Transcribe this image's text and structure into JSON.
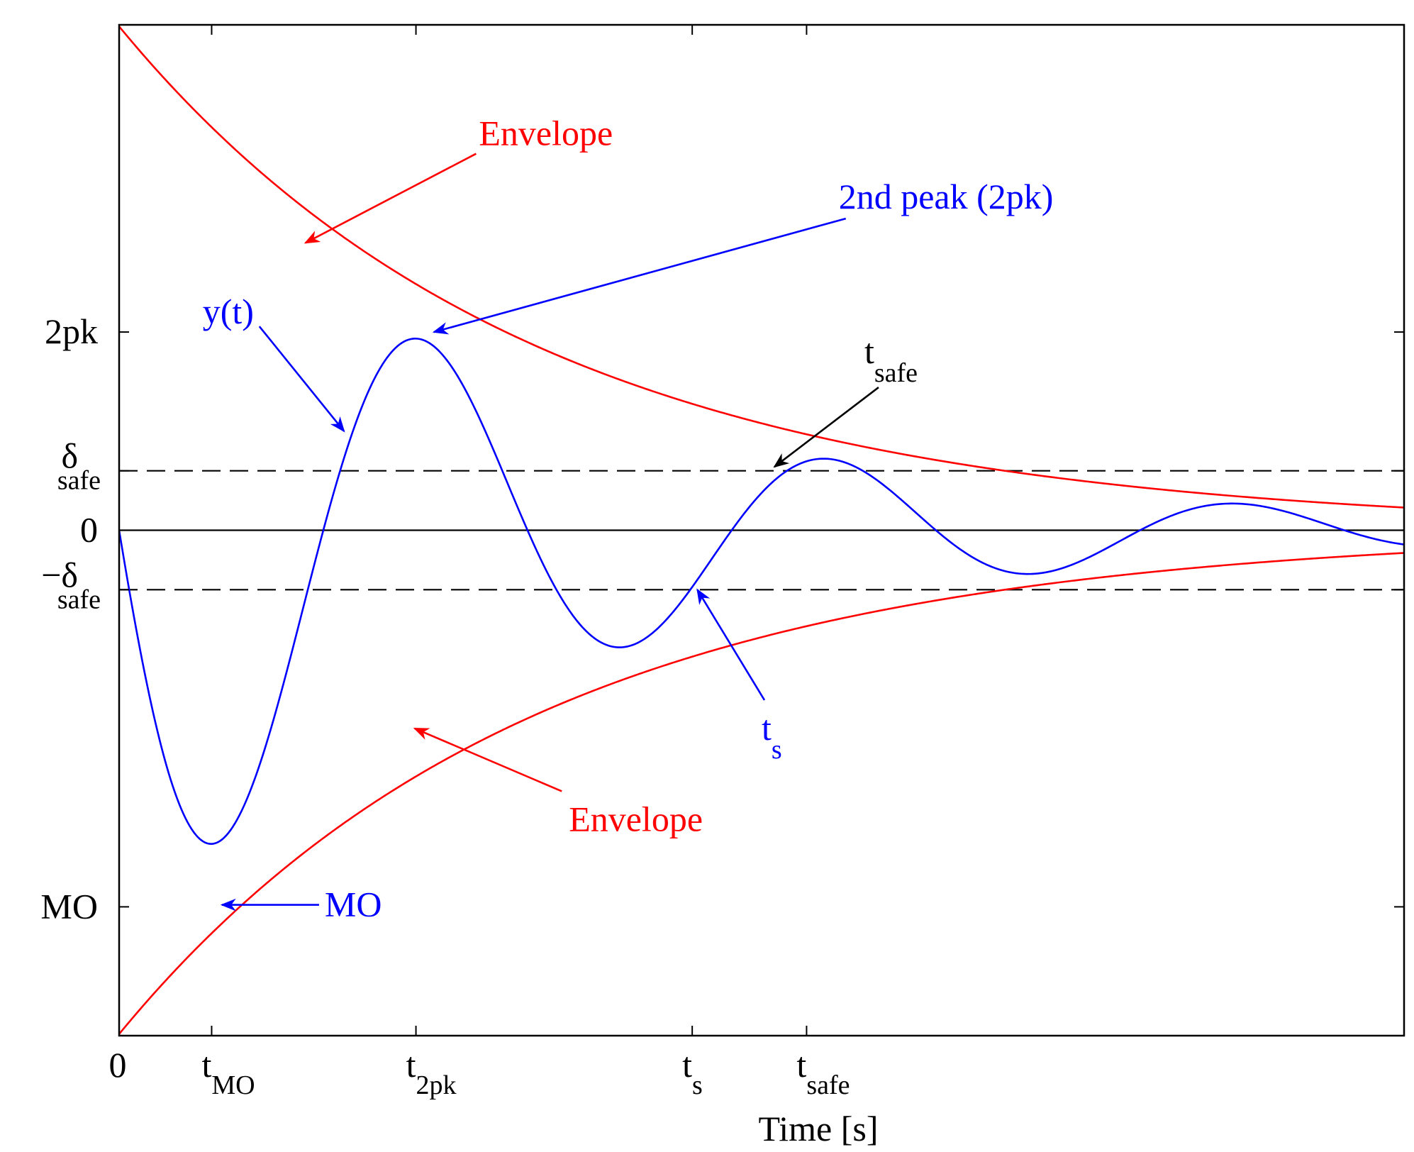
{
  "chart_data": {
    "type": "line",
    "title": "",
    "xlabel": "Time [s]",
    "ylabel": "",
    "xlim": [
      0,
      10
    ],
    "ylim": [
      -1.275,
      1.275
    ],
    "grid": false,
    "x_ticks": [
      {
        "value": 0,
        "main": "0",
        "sub": ""
      },
      {
        "value": 0.72,
        "main": "t",
        "sub": "MO"
      },
      {
        "value": 2.31,
        "main": "t",
        "sub": "2pk"
      },
      {
        "value": 4.46,
        "main": "t",
        "sub": "s"
      },
      {
        "value": 5.35,
        "main": "t",
        "sub": "safe"
      }
    ],
    "y_ticks": [
      {
        "value": 0.5,
        "main": "2pk",
        "sub": ""
      },
      {
        "value": 0.15,
        "main": "δ",
        "sub": "safe"
      },
      {
        "value": 0,
        "main": "0",
        "sub": ""
      },
      {
        "value": -0.15,
        "main": "−δ",
        "sub": "safe"
      },
      {
        "value": -0.95,
        "main": "MO",
        "sub": ""
      }
    ],
    "series": [
      {
        "name": "y(t)",
        "color": "#0000ff",
        "function": "-exp(-0.31*t)*sin(1.977*t)",
        "x_range": [
          0,
          10
        ]
      },
      {
        "name": "Upper envelope",
        "color": "#ff0000",
        "function": "1.271*exp(-0.31*t)",
        "x_range": [
          0,
          10
        ]
      },
      {
        "name": "Lower envelope",
        "color": "#ff0000",
        "function": "-1.271*exp(-0.31*t)",
        "x_range": [
          0,
          10
        ]
      },
      {
        "name": "delta_safe",
        "color": "#000000",
        "style": "dashed",
        "y": 0.15
      },
      {
        "name": "minus_delta_safe",
        "color": "#000000",
        "style": "dashed",
        "y": -0.15
      },
      {
        "name": "zero",
        "color": "#000000",
        "style": "solid",
        "y": 0
      }
    ],
    "annotations": [
      {
        "key": "envelope_top",
        "text": "Envelope",
        "sub": "",
        "color": "#ff0000",
        "text_at": [
          2.8,
          1.0
        ],
        "arrow_to": [
          1.45,
          0.725
        ]
      },
      {
        "key": "second_peak",
        "text": "2nd peak (2pk)",
        "sub": "",
        "color": "#0000ff",
        "text_at": [
          5.6,
          0.84
        ],
        "arrow_to": [
          2.45,
          0.5
        ]
      },
      {
        "key": "yt",
        "text": "y(t)",
        "sub": "",
        "color": "#0000ff",
        "text_at": [
          0.65,
          0.55
        ],
        "arrow_to": [
          1.75,
          0.25
        ]
      },
      {
        "key": "tsafe",
        "text": "t",
        "sub": "safe",
        "color": "#000000",
        "text_at": [
          5.8,
          0.45
        ],
        "arrow_to": [
          5.1,
          0.16
        ]
      },
      {
        "key": "ts",
        "text": "t",
        "sub": "s",
        "color": "#0000ff",
        "text_at": [
          5.0,
          -0.5
        ],
        "arrow_to": [
          4.5,
          -0.15
        ]
      },
      {
        "key": "envelope_bottom",
        "text": "Envelope",
        "sub": "",
        "color": "#ff0000",
        "text_at": [
          3.5,
          -0.73
        ],
        "arrow_to": [
          2.3,
          -0.5
        ]
      },
      {
        "key": "mo",
        "text": "MO",
        "sub": "",
        "color": "#0000ff",
        "text_at": [
          1.6,
          -0.945
        ],
        "arrow_to": [
          0.8,
          -0.945
        ]
      }
    ]
  }
}
